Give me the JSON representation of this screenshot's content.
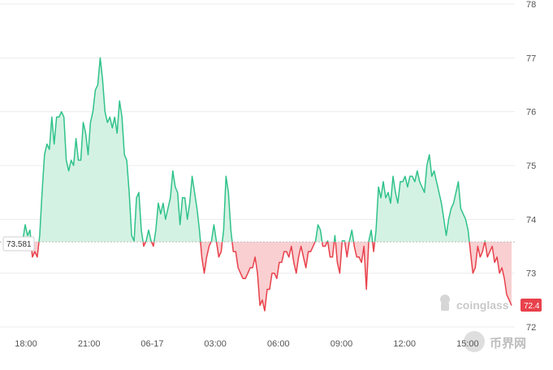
{
  "chart_data": {
    "type": "area",
    "baseline": 73.581,
    "baseline_label": "73.581",
    "last_value_label": "72.4",
    "ylim": [
      72,
      78
    ],
    "y_ticks": [
      "78",
      "77",
      "76",
      "75",
      "74",
      "73",
      "72"
    ],
    "x_ticks": [
      "18:00",
      "21:00",
      "06-17",
      "03:00",
      "06:00",
      "09:00",
      "12:00",
      "15:00"
    ],
    "grid": true,
    "colors": {
      "above": "#2fc28a",
      "above_fill": "#d4f2e3",
      "below": "#e8414b",
      "below_fill": "#f9cfd1",
      "baseline": "#bdbdbd"
    },
    "series": [
      {
        "values": [
          73.6,
          73.9,
          73.7,
          73.8,
          73.3,
          73.4,
          73.3,
          73.7,
          74.5,
          75.2,
          75.4,
          75.3,
          75.9,
          75.4,
          75.9,
          75.9,
          76.0,
          75.9,
          75.1,
          74.9,
          75.1,
          75.0,
          75.5,
          75.1,
          75.1,
          75.8,
          75.6,
          75.2,
          75.8,
          76.0,
          76.4,
          76.5,
          77.0,
          76.6,
          76.0,
          75.8,
          75.9,
          75.7,
          75.9,
          75.6,
          76.2,
          75.9,
          75.2,
          75.1,
          74.5,
          73.7,
          73.6,
          74.4,
          74.5,
          73.8,
          73.5,
          73.6,
          73.8,
          73.6,
          73.5,
          73.8,
          74.3,
          74.1,
          74.3,
          74.0,
          74.2,
          74.4,
          74.9,
          74.6,
          74.5,
          73.9,
          74.4,
          74.4,
          74.0,
          74.3,
          74.8,
          74.5,
          74.2,
          73.8,
          73.3,
          73.0,
          73.3,
          73.5,
          73.6,
          73.9,
          73.6,
          73.3,
          73.4,
          73.8,
          74.8,
          74.5,
          73.8,
          73.4,
          73.4,
          73.1,
          73.0,
          72.9,
          72.9,
          73.0,
          73.1,
          73.1,
          73.3,
          73.0,
          72.4,
          72.5,
          72.3,
          72.7,
          72.7,
          73.0,
          73.0,
          72.9,
          73.2,
          73.2,
          73.4,
          73.4,
          73.3,
          73.5,
          73.2,
          73.0,
          73.3,
          73.5,
          73.3,
          73.1,
          73.4,
          73.4,
          73.5,
          73.6,
          73.9,
          73.8,
          73.5,
          73.5,
          73.6,
          73.3,
          73.3,
          73.7,
          73.2,
          73.0,
          73.6,
          73.6,
          73.3,
          73.6,
          73.8,
          73.5,
          73.3,
          73.3,
          73.2,
          73.5,
          72.7,
          73.6,
          73.8,
          73.4,
          73.8,
          74.6,
          74.4,
          74.7,
          74.4,
          74.5,
          74.3,
          74.8,
          74.5,
          74.3,
          74.7,
          74.7,
          74.8,
          74.6,
          74.8,
          74.8,
          74.7,
          74.9,
          74.7,
          74.6,
          74.5,
          75.0,
          75.2,
          74.8,
          74.9,
          74.7,
          74.5,
          74.3,
          74.0,
          73.7,
          74.0,
          74.2,
          74.3,
          74.5,
          74.7,
          74.2,
          74.1,
          74.0,
          73.8,
          73.4,
          73.0,
          73.1,
          73.5,
          73.3,
          73.4,
          73.6,
          73.3,
          73.4,
          73.5,
          73.2,
          73.3,
          73.0,
          73.1,
          72.9,
          72.6,
          72.5,
          72.4
        ]
      }
    ]
  },
  "watermark": {
    "text": "coinglass"
  },
  "corner_watermark": {
    "text": "币界网"
  }
}
